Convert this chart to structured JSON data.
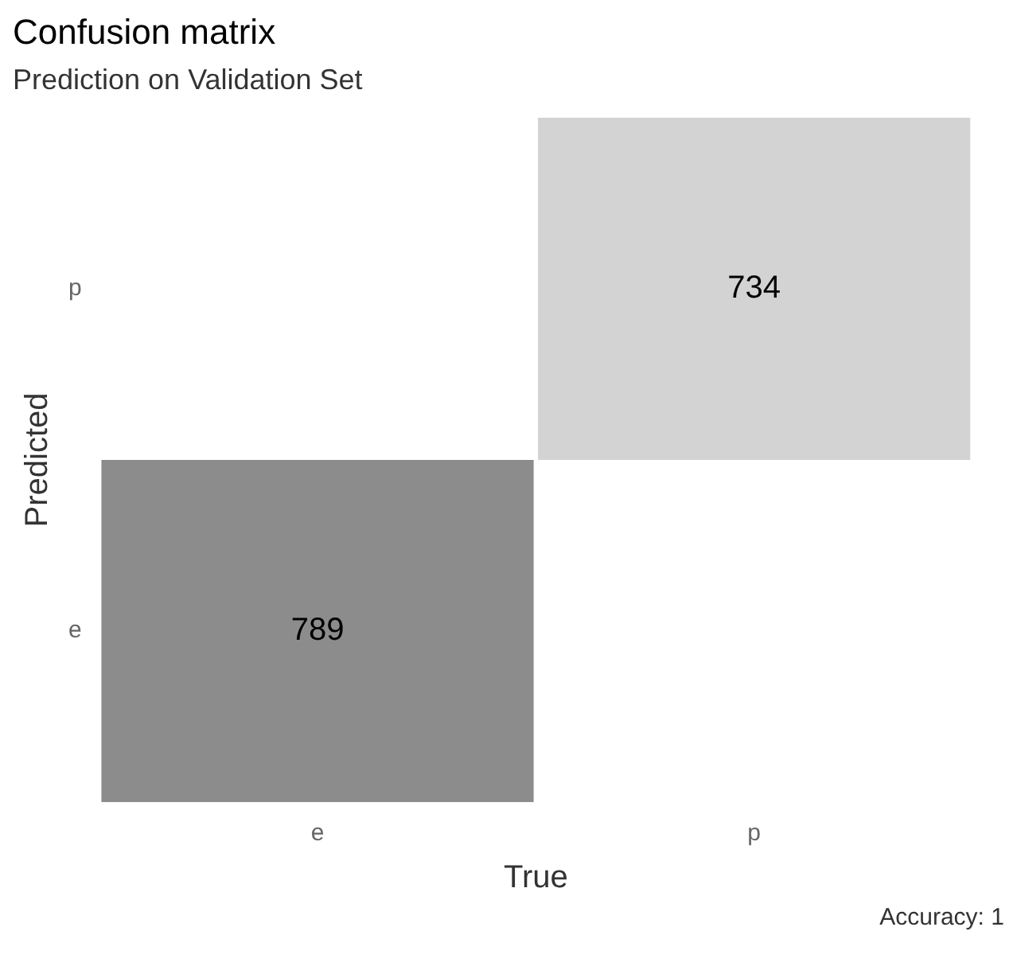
{
  "chart_data": {
    "type": "heatmap",
    "title": "Confusion matrix",
    "subtitle": "Prediction on Validation Set",
    "xlabel": "True",
    "ylabel": "Predicted",
    "categories": [
      "e",
      "p"
    ],
    "y_categories": [
      "p",
      "e"
    ],
    "cells": [
      [
        null,
        734
      ],
      [
        789,
        null
      ]
    ],
    "data_labels": true,
    "annotations": [
      "Accuracy: 1"
    ]
  }
}
